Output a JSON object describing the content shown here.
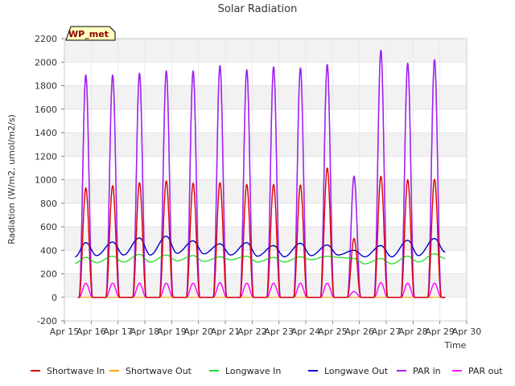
{
  "chart_data": {
    "type": "line",
    "title": "Solar Radiation",
    "xlabel": "Time",
    "ylabel": "Radiation (W/m2, umol/m2/s)",
    "ylim": [
      -200,
      2200
    ],
    "xlim": [
      15,
      30
    ],
    "yticks": [
      -200,
      0,
      200,
      400,
      600,
      800,
      1000,
      1200,
      1400,
      1600,
      1800,
      2000,
      2200
    ],
    "xticks": [
      {
        "v": 15,
        "label": "Apr 15"
      },
      {
        "v": 16,
        "label": "Apr 16"
      },
      {
        "v": 17,
        "label": "Apr 17"
      },
      {
        "v": 18,
        "label": "Apr 18"
      },
      {
        "v": 19,
        "label": "Apr 19"
      },
      {
        "v": 20,
        "label": "Apr 20"
      },
      {
        "v": 21,
        "label": "Apr 21"
      },
      {
        "v": 22,
        "label": "Apr 22"
      },
      {
        "v": 23,
        "label": "Apr 23"
      },
      {
        "v": 24,
        "label": "Apr 24"
      },
      {
        "v": 25,
        "label": "Apr 25"
      },
      {
        "v": 26,
        "label": "Apr 26"
      },
      {
        "v": 27,
        "label": "Apr 27"
      },
      {
        "v": 28,
        "label": "Apr 28"
      },
      {
        "v": 29,
        "label": "Apr 29"
      },
      {
        "v": 30,
        "label": "Apr 30"
      }
    ],
    "grid": true,
    "legend_position": "bottom",
    "station_label": "WP_met",
    "days": [
      15.8,
      16.8,
      17.8,
      18.8,
      19.8,
      20.8,
      21.8,
      22.8,
      23.8,
      24.8,
      25.8,
      26.8,
      27.8,
      28.8
    ],
    "series": [
      {
        "name": "Shortwave In",
        "color": "#dd0000",
        "kind": "diurnal",
        "width": 1.4,
        "peaks": [
          930,
          950,
          975,
          990,
          970,
          975,
          960,
          960,
          955,
          1100,
          500,
          1030,
          1000,
          1005
        ]
      },
      {
        "name": "Shortwave Out",
        "color": "#ffa500",
        "kind": "diurnal",
        "width": 1.2,
        "peaks": [
          0,
          0,
          0,
          0,
          0,
          0,
          0,
          0,
          0,
          0,
          0,
          0,
          0,
          0
        ]
      },
      {
        "name": "Longwave In",
        "color": "#22dd22",
        "kind": "smooth",
        "width": 1.3,
        "x": [
          15.4,
          15.8,
          16.2,
          16.8,
          17.2,
          17.8,
          18.2,
          18.8,
          19.2,
          19.8,
          20.2,
          20.8,
          21.2,
          21.8,
          22.2,
          22.8,
          23.2,
          23.8,
          24.2,
          24.8,
          25.2,
          25.8,
          26.2,
          26.8,
          27.2,
          27.8,
          28.2,
          28.8,
          29.2
        ],
        "y": [
          290,
          340,
          295,
          350,
          300,
          365,
          300,
          360,
          310,
          355,
          305,
          345,
          320,
          350,
          300,
          340,
          300,
          345,
          320,
          350,
          340,
          330,
          285,
          330,
          285,
          350,
          300,
          370,
          330
        ]
      },
      {
        "name": "Longwave Out",
        "color": "#0000cc",
        "kind": "smooth",
        "width": 1.4,
        "x": [
          15.4,
          15.8,
          16.2,
          16.8,
          17.2,
          17.8,
          18.2,
          18.8,
          19.2,
          19.8,
          20.2,
          20.8,
          21.2,
          21.8,
          22.2,
          22.8,
          23.2,
          23.8,
          24.2,
          24.8,
          25.2,
          25.8,
          26.2,
          26.8,
          27.2,
          27.8,
          28.2,
          28.8,
          29.2
        ],
        "y": [
          345,
          465,
          355,
          470,
          360,
          505,
          360,
          520,
          375,
          480,
          370,
          455,
          360,
          465,
          350,
          440,
          345,
          460,
          355,
          445,
          360,
          400,
          345,
          440,
          345,
          485,
          355,
          500,
          385
        ]
      },
      {
        "name": "PAR in",
        "color": "#a020f0",
        "kind": "diurnal",
        "width": 1.6,
        "peaks": [
          1890,
          1890,
          1905,
          1925,
          1925,
          1970,
          1935,
          1960,
          1950,
          1980,
          1030,
          2100,
          1990,
          2020
        ]
      },
      {
        "name": "PAR out",
        "color": "#ff00ff",
        "kind": "diurnal",
        "width": 1.4,
        "peaks": [
          120,
          120,
          120,
          120,
          120,
          125,
          120,
          120,
          120,
          120,
          50,
          125,
          120,
          120
        ]
      }
    ]
  }
}
